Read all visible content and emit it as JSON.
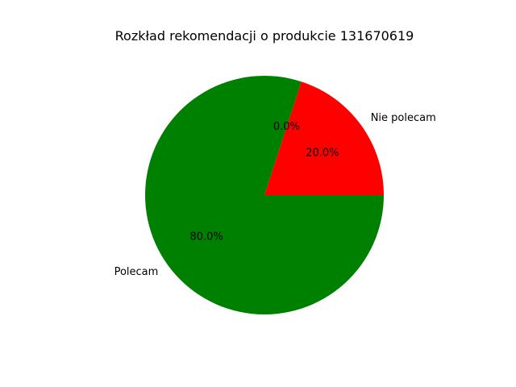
{
  "chart_data": {
    "type": "pie",
    "title": "Rozkład rekomendacji o produkcie 131670619",
    "categories": [
      "Nie polecam",
      "",
      "Polecam"
    ],
    "values": [
      20.0,
      0.0,
      80.0
    ],
    "percent_labels": [
      "20.0%",
      "0.0%",
      "80.0%"
    ],
    "colors": [
      "#ff0000",
      "#0000ff",
      "#008000"
    ],
    "start_angle_deg": 0,
    "direction": "counterclockwise",
    "legend": "none"
  }
}
